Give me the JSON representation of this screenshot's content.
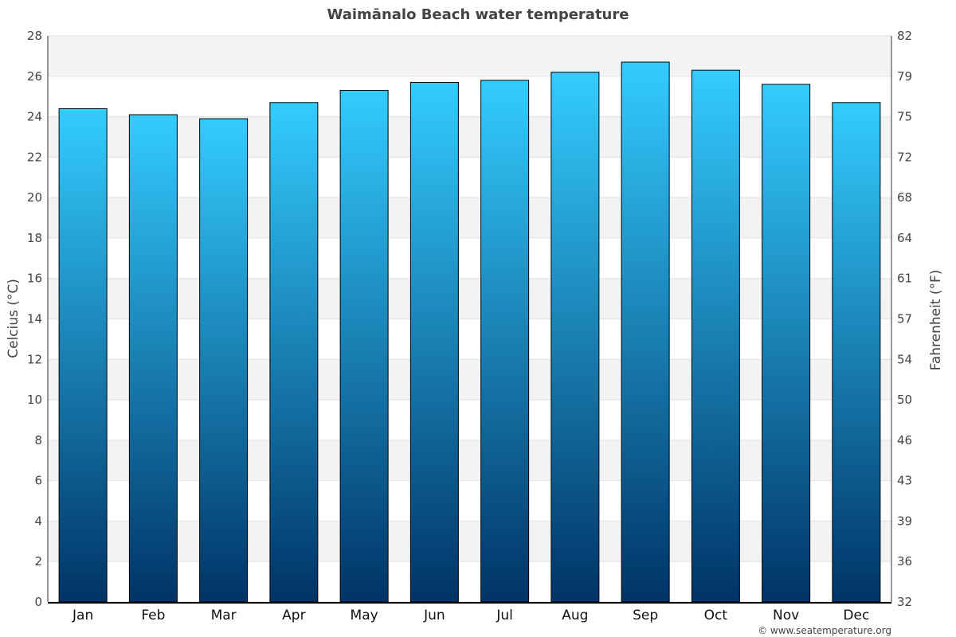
{
  "chart_data": {
    "type": "bar",
    "title": "Waimānalo Beach water temperature",
    "categories": [
      "Jan",
      "Feb",
      "Mar",
      "Apr",
      "May",
      "Jun",
      "Jul",
      "Aug",
      "Sep",
      "Oct",
      "Nov",
      "Dec"
    ],
    "values": [
      24.4,
      24.1,
      23.9,
      24.7,
      25.3,
      25.7,
      25.8,
      26.2,
      26.7,
      26.3,
      25.6,
      24.7
    ],
    "ylabel": "Celcius (°C)",
    "ylabel_right": "Fahrenheit (°F)",
    "ylim": [
      0,
      28
    ],
    "yticks": [
      "0",
      "2",
      "4",
      "6",
      "8",
      "10",
      "12",
      "14",
      "16",
      "18",
      "20",
      "22",
      "24",
      "26",
      "28"
    ],
    "yticks_right": [
      "32",
      "36",
      "39",
      "43",
      "46",
      "50",
      "54",
      "57",
      "61",
      "64",
      "68",
      "72",
      "75",
      "79",
      "82"
    ],
    "grid": true,
    "colors": {
      "bar_top": "#33ccff",
      "bar_bottom": "#003366",
      "band": "#f3f3f3"
    }
  },
  "credit": "© www.seatemperature.org"
}
